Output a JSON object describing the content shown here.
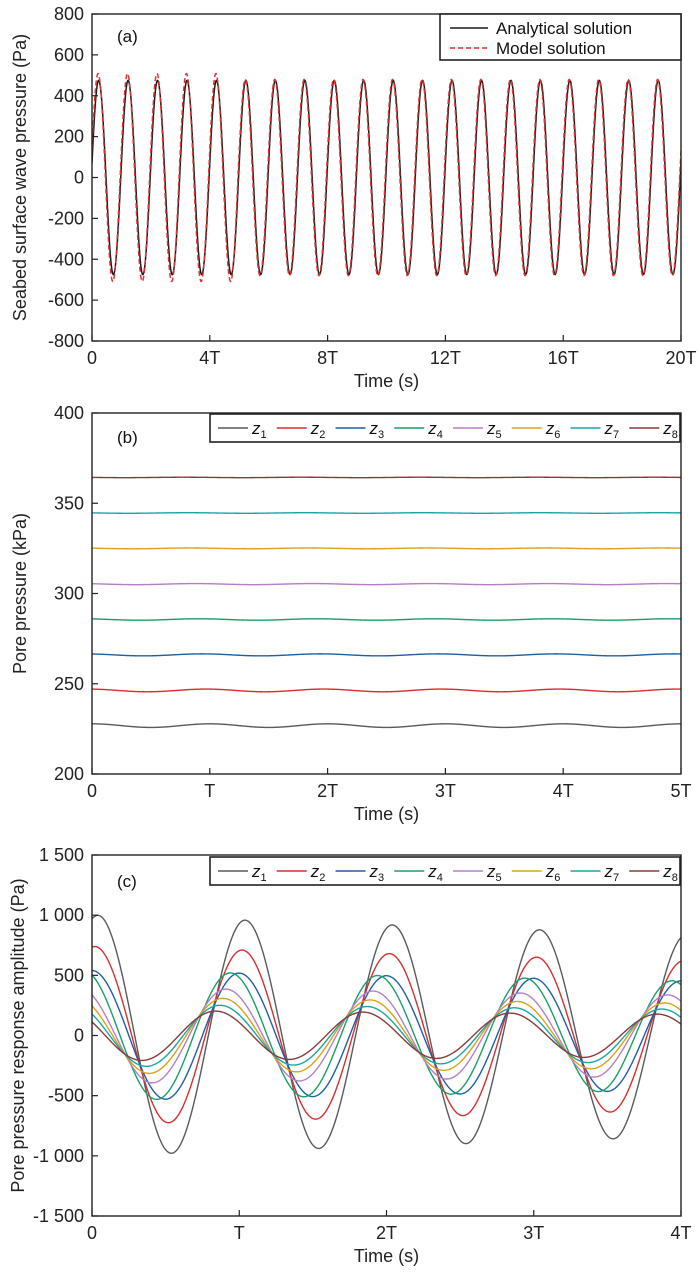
{
  "chart_data": [
    {
      "type": "line",
      "panel_label": "(a)",
      "xlabel": "Time (s)",
      "ylabel": "Seabed surface wave pressure (Pa)",
      "x_period_count": 20,
      "xlim": [
        0,
        20
      ],
      "ylim": [
        -800,
        800
      ],
      "xtick_values": [
        0,
        4,
        8,
        12,
        16,
        20
      ],
      "xticks": [
        "0",
        "4T",
        "8T",
        "12T",
        "16T",
        "20T"
      ],
      "yticks": [
        -800,
        -600,
        -400,
        -200,
        0,
        200,
        400,
        600,
        800
      ],
      "legend_position": "top-right",
      "series": [
        {
          "name": "Analytical solution",
          "color": "#1a1a1a",
          "dash": "solid",
          "amplitude": 475,
          "phase_offset": 0
        },
        {
          "name": "Model solution",
          "color": "#e03030",
          "dash": "dashed",
          "amplitude": 480,
          "phase_offset": 0.02
        }
      ]
    },
    {
      "type": "line",
      "panel_label": "(b)",
      "xlabel": "Time (s)",
      "ylabel": "Pore pressure (kPa)",
      "xlim": [
        0,
        5
      ],
      "ylim": [
        200,
        400
      ],
      "xtick_values": [
        0,
        1,
        2,
        3,
        4,
        5
      ],
      "xticks": [
        "0",
        "T",
        "2T",
        "3T",
        "4T",
        "5T"
      ],
      "yticks": [
        200,
        250,
        300,
        350,
        400
      ],
      "legend_position": "top-right",
      "series": [
        {
          "name": "z1",
          "label_main": "z",
          "label_sub": "1",
          "color": "#5a5a5a",
          "mean": 226.8,
          "amplitude": 1.0
        },
        {
          "name": "z2",
          "label_main": "z",
          "label_sub": "2",
          "color": "#d62f2f",
          "mean": 246.3,
          "amplitude": 0.75
        },
        {
          "name": "z3",
          "label_main": "z",
          "label_sub": "3",
          "color": "#1f5fa6",
          "mean": 266.0,
          "amplitude": 0.55
        },
        {
          "name": "z4",
          "label_main": "z",
          "label_sub": "4",
          "color": "#199e6a",
          "mean": 285.6,
          "amplitude": 0.4
        },
        {
          "name": "z5",
          "label_main": "z",
          "label_sub": "5",
          "color": "#b57fc7",
          "mean": 305.2,
          "amplitude": 0.3
        },
        {
          "name": "z6",
          "label_main": "z",
          "label_sub": "6",
          "color": "#d9a21b",
          "mean": 325.0,
          "amplitude": 0.22
        },
        {
          "name": "z7",
          "label_main": "z",
          "label_sub": "7",
          "color": "#19a5a5",
          "mean": 344.6,
          "amplitude": 0.16
        },
        {
          "name": "z8",
          "label_main": "z",
          "label_sub": "8",
          "color": "#8b3a3a",
          "mean": 364.3,
          "amplitude": 0.12
        }
      ]
    },
    {
      "type": "line",
      "panel_label": "(c)",
      "xlabel": "Time (s)",
      "ylabel": "Pore pressure response amplitude (Pa)",
      "xlim": [
        0,
        4
      ],
      "ylim": [
        -1500,
        1500
      ],
      "xtick_values": [
        0,
        1,
        2,
        3,
        4
      ],
      "xticks": [
        "0",
        "T",
        "2T",
        "3T",
        "4T"
      ],
      "yticks": [
        -1500,
        -1000,
        -500,
        0,
        500,
        1000,
        1500
      ],
      "ytick_labels": [
        "-1 500",
        "-1 000",
        "-500",
        "0",
        "500",
        "1 000",
        "1 500"
      ],
      "legend_position": "top-right",
      "series": [
        {
          "name": "z1",
          "label_main": "z",
          "label_sub": "1",
          "color": "#5a5a5a",
          "amplitude": 1000,
          "phase_shift": 0.04
        },
        {
          "name": "z2",
          "label_main": "z",
          "label_sub": "2",
          "color": "#d62f2f",
          "amplitude": 740,
          "phase_shift": 0.02
        },
        {
          "name": "z3",
          "label_main": "z",
          "label_sub": "3",
          "color": "#1f5fa6",
          "amplitude": 540,
          "phase_shift": 0.0
        },
        {
          "name": "z4",
          "label_main": "z",
          "label_sub": "4",
          "color": "#199e6a",
          "amplitude": 540,
          "phase_shift": -0.06
        },
        {
          "name": "z5",
          "label_main": "z",
          "label_sub": "5",
          "color": "#b57fc7",
          "amplitude": 400,
          "phase_shift": -0.09
        },
        {
          "name": "z6",
          "label_main": "z",
          "label_sub": "6",
          "color": "#d9a21b",
          "amplitude": 320,
          "phase_shift": -0.11
        },
        {
          "name": "z7",
          "label_main": "z",
          "label_sub": "7",
          "color": "#19a5a5",
          "amplitude": 260,
          "phase_shift": -0.13
        },
        {
          "name": "z8",
          "label_main": "z",
          "label_sub": "8",
          "color": "#8b3a3a",
          "amplitude": 210,
          "phase_shift": -0.16
        }
      ]
    }
  ]
}
